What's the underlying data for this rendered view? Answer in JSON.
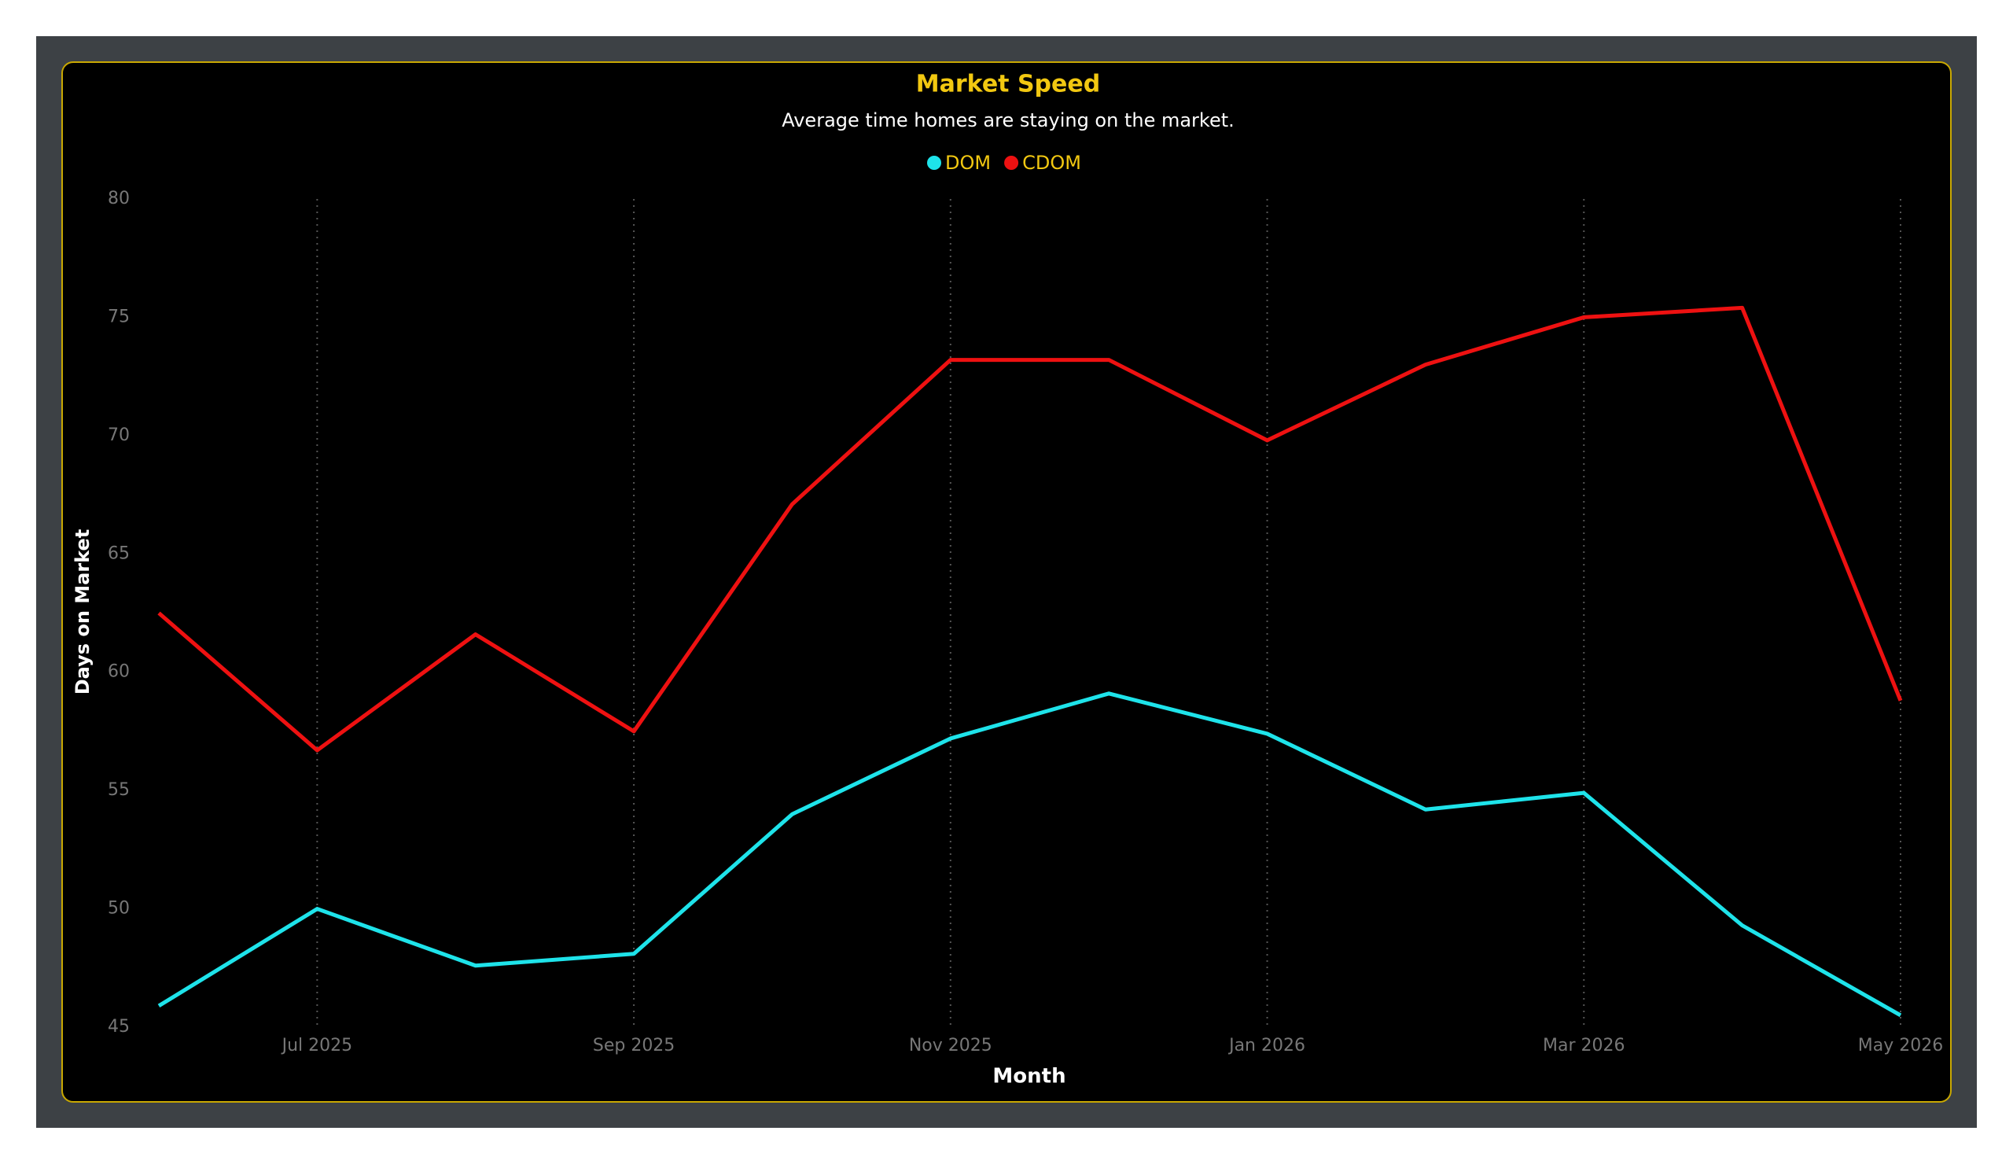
{
  "chart_data": {
    "type": "line",
    "title": "Market Speed",
    "subtitle": "Average time homes are staying on the market.",
    "x_label": "Month",
    "y_label": "Days on Market",
    "categories": [
      null,
      "Jul 2025",
      null,
      "Sep 2025",
      null,
      "Nov 2025",
      null,
      "Jan 2026",
      null,
      "Mar 2026",
      null,
      "May 2026"
    ],
    "series": [
      {
        "name": "DOM",
        "color": "#1ee3ea",
        "values": [
          45.9,
          50,
          47.6,
          48.1,
          54.0,
          57.2,
          59.1,
          57.4,
          54.2,
          54.9,
          49.3,
          45.5
        ]
      },
      {
        "name": "CDOM",
        "color": "#ee1111",
        "values": [
          62.5,
          56.7,
          61.6,
          57.5,
          67.1,
          73.2,
          73.2,
          69.8,
          73.0,
          75.0,
          75.4,
          58.8
        ]
      }
    ],
    "ylim": [
      45,
      80
    ],
    "yticks": [
      45,
      50,
      55,
      60,
      65,
      70,
      75,
      80
    ],
    "grid": true,
    "legend": "top"
  }
}
